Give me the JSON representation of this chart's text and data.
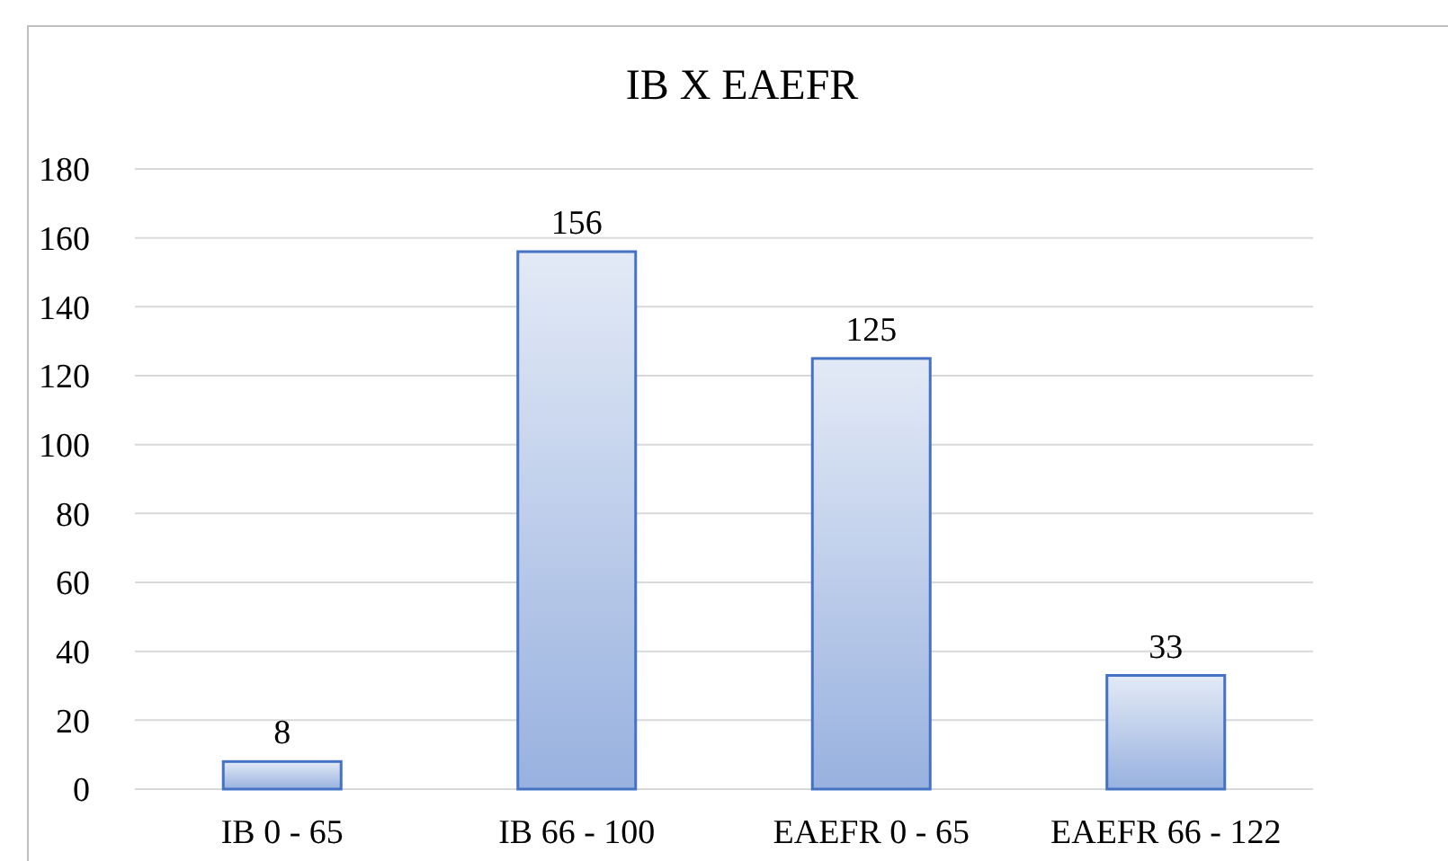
{
  "chart_data": {
    "type": "bar",
    "title": "IB X EAEFR",
    "categories": [
      "IB 0 - 65",
      "IB 66 - 100",
      "EAEFR 0 - 65",
      "EAEFR 66 - 122"
    ],
    "values": [
      8,
      156,
      125,
      33
    ],
    "color": "#4472c4",
    "ylim": [
      0,
      180
    ],
    "yticks": [
      0,
      20,
      40,
      60,
      80,
      100,
      120,
      140,
      160,
      180
    ],
    "grid": "y",
    "data_labels": true
  }
}
